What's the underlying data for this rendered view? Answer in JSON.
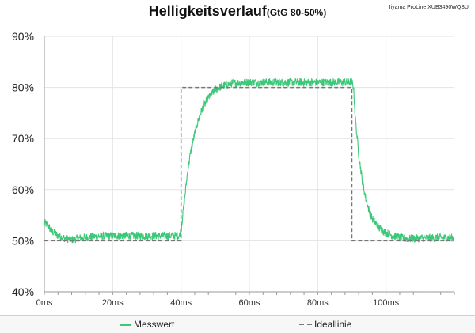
{
  "header": {
    "title": "Helligkeitsverlauf",
    "subtitle": "(GtG 80-50%)",
    "model": "Iiyama ProLine XUB3490WQSU"
  },
  "colors": {
    "measured": "#3cc878",
    "ideal": "#777777",
    "grid": "#e3e3e3",
    "axis": "#9a9a9a"
  },
  "chart_data": {
    "type": "line",
    "title": "Helligkeitsverlauf (GtG 80-50%)",
    "xlim": [
      0,
      120
    ],
    "ylim": [
      40,
      90
    ],
    "xticks": [
      0,
      20,
      40,
      60,
      80,
      100
    ],
    "xtick_labels": [
      "0ms",
      "20ms",
      "40ms",
      "60ms",
      "80ms",
      "100ms"
    ],
    "yticks": [
      40,
      50,
      60,
      70,
      80,
      90
    ],
    "ytick_labels": [
      "40%",
      "50%",
      "60%",
      "70%",
      "80%",
      "90%"
    ],
    "grid": true,
    "legend_position": "bottom",
    "series": [
      {
        "name": "Messwert",
        "style": "solid",
        "x": [
          0,
          1,
          2,
          4,
          6,
          8,
          10,
          14,
          20,
          30,
          39.5,
          40,
          41,
          42,
          43,
          44,
          45,
          46,
          48,
          50,
          52,
          55,
          58,
          60,
          65,
          70,
          80,
          90,
          90.5,
          91,
          92,
          93,
          94,
          95,
          96,
          98,
          100,
          102,
          104,
          106,
          110,
          115,
          120
        ],
        "y": [
          53.5,
          53,
          52,
          51,
          50.5,
          50.2,
          50.5,
          50.8,
          51,
          51,
          51,
          52,
          58,
          64,
          68,
          71,
          73.5,
          75.5,
          78,
          79.5,
          80.3,
          80.8,
          81,
          81,
          81,
          81,
          81,
          81,
          80,
          74,
          67,
          62,
          58.5,
          56,
          54.3,
          52.5,
          51.6,
          51,
          50.6,
          50.4,
          50.5,
          50.6,
          50.6
        ],
        "noise": 0.8
      },
      {
        "name": "Ideallinie",
        "style": "dashed",
        "x": [
          0,
          40,
          40,
          90,
          90,
          120
        ],
        "y": [
          50,
          50,
          80,
          80,
          50,
          50
        ]
      }
    ]
  }
}
